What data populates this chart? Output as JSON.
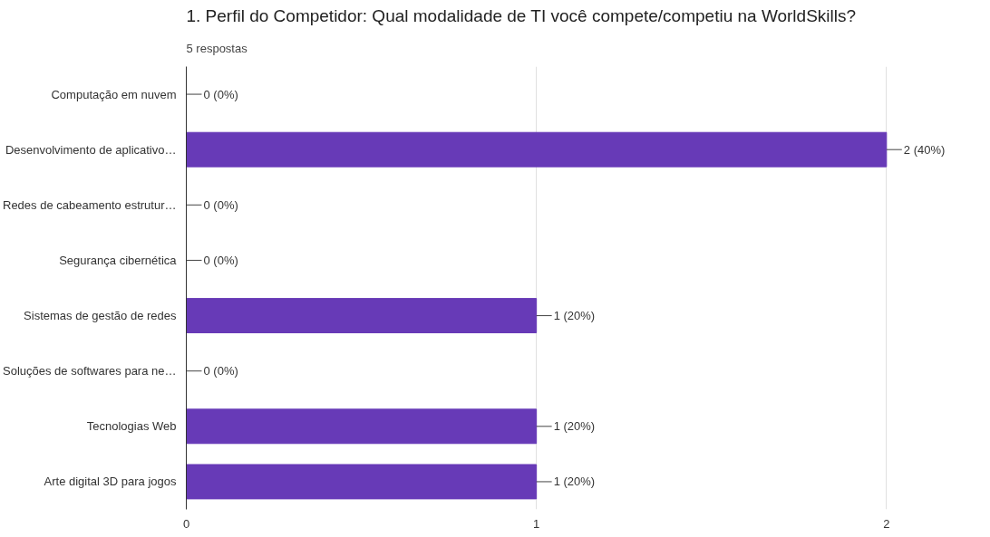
{
  "chart_data": {
    "type": "bar",
    "orientation": "horizontal",
    "title": "1. Perfil do Competidor:    Qual modalidade de TI você compete/competiu na WorldSkills?",
    "subtitle": "5 respostas",
    "categories": [
      "Computação em nuvem",
      "Desenvolvimento de aplicativo…",
      "Redes de cabeamento estrutur…",
      "Segurança cibernética",
      "Sistemas de gestão de redes",
      "Soluções de softwares para ne…",
      "Tecnologias Web",
      "Arte digital 3D para jogos"
    ],
    "values": [
      0,
      2,
      0,
      0,
      1,
      0,
      1,
      1
    ],
    "value_labels": [
      "0 (0%)",
      "2 (40%)",
      "0 (0%)",
      "0 (0%)",
      "1 (20%)",
      "0 (0%)",
      "1 (20%)",
      "1 (20%)"
    ],
    "color": "#673ab7",
    "xlim": [
      0,
      2
    ],
    "xticks": [
      0,
      1,
      2
    ],
    "grid": "x"
  }
}
